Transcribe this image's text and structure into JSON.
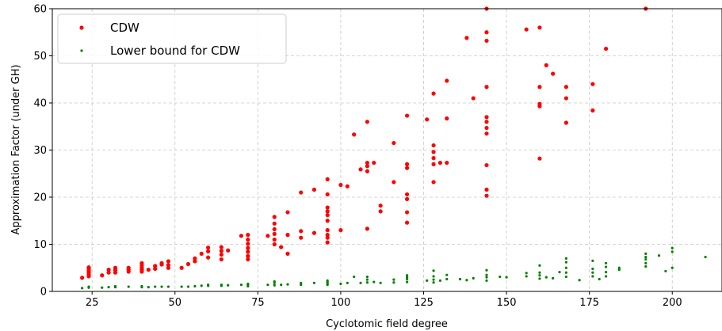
{
  "chart_data": {
    "type": "scatter",
    "xlabel": "Cyclotomic field degree",
    "ylabel": "Approximation Factor (under GH)",
    "xlim": [
      13,
      215
    ],
    "ylim": [
      0,
      60
    ],
    "xticks": [
      25,
      50,
      75,
      100,
      125,
      150,
      175,
      200
    ],
    "yticks": [
      0,
      10,
      20,
      30,
      40,
      50,
      60
    ],
    "grid": true,
    "legend_position": "top-left",
    "series": [
      {
        "name": "CDW",
        "color": "#ff0000",
        "points": [
          [
            22,
            2.9
          ],
          [
            24,
            3.2
          ],
          [
            24,
            3.6
          ],
          [
            24,
            4.0
          ],
          [
            24,
            4.4
          ],
          [
            24,
            4.8
          ],
          [
            24,
            5.1
          ],
          [
            28,
            3.4
          ],
          [
            30,
            4.0
          ],
          [
            30,
            4.6
          ],
          [
            32,
            4.0
          ],
          [
            32,
            4.5
          ],
          [
            32,
            5.0
          ],
          [
            36,
            4.2
          ],
          [
            36,
            4.6
          ],
          [
            36,
            5.0
          ],
          [
            40,
            4.2
          ],
          [
            40,
            4.6
          ],
          [
            40,
            5.0
          ],
          [
            40,
            5.5
          ],
          [
            40,
            6.0
          ],
          [
            42,
            4.6
          ],
          [
            44,
            4.8
          ],
          [
            44,
            5.4
          ],
          [
            46,
            5.7
          ],
          [
            46,
            6.0
          ],
          [
            48,
            5.0
          ],
          [
            48,
            5.6
          ],
          [
            48,
            6.4
          ],
          [
            52,
            5.0
          ],
          [
            54,
            5.8
          ],
          [
            56,
            6.4
          ],
          [
            56,
            7.0
          ],
          [
            58,
            8.0
          ],
          [
            60,
            7.2
          ],
          [
            60,
            8.5
          ],
          [
            60,
            9.3
          ],
          [
            64,
            6.8
          ],
          [
            64,
            7.8
          ],
          [
            64,
            8.6
          ],
          [
            64,
            9.4
          ],
          [
            66,
            8.7
          ],
          [
            70,
            11.8
          ],
          [
            72,
            6.8
          ],
          [
            72,
            7.5
          ],
          [
            72,
            8.4
          ],
          [
            72,
            9.2
          ],
          [
            72,
            10.1
          ],
          [
            72,
            11.0
          ],
          [
            72,
            12.0
          ],
          [
            78,
            11.8
          ],
          [
            80,
            10.0
          ],
          [
            80,
            11.0
          ],
          [
            80,
            12.2
          ],
          [
            80,
            13.2
          ],
          [
            80,
            14.4
          ],
          [
            80,
            15.8
          ],
          [
            82,
            9.4
          ],
          [
            84,
            8.0
          ],
          [
            84,
            12.0
          ],
          [
            84,
            16.8
          ],
          [
            88,
            11.4
          ],
          [
            88,
            12.8
          ],
          [
            88,
            21.0
          ],
          [
            92,
            12.4
          ],
          [
            92,
            21.6
          ],
          [
            96,
            10.4
          ],
          [
            96,
            11.4
          ],
          [
            96,
            12.0
          ],
          [
            96,
            13.0
          ],
          [
            96,
            15.0
          ],
          [
            96,
            16.2
          ],
          [
            96,
            17.0
          ],
          [
            96,
            17.8
          ],
          [
            96,
            20.6
          ],
          [
            96,
            23.8
          ],
          [
            100,
            13.0
          ],
          [
            100,
            22.6
          ],
          [
            102,
            22.3
          ],
          [
            104,
            33.3
          ],
          [
            106,
            25.9
          ],
          [
            108,
            13.3
          ],
          [
            108,
            25.5
          ],
          [
            108,
            26.6
          ],
          [
            108,
            27.3
          ],
          [
            108,
            36.0
          ],
          [
            110,
            27.3
          ],
          [
            112,
            17.0
          ],
          [
            112,
            18.2
          ],
          [
            116,
            23.2
          ],
          [
            116,
            31.5
          ],
          [
            120,
            14.6
          ],
          [
            120,
            16.8
          ],
          [
            120,
            19.6
          ],
          [
            120,
            20.6
          ],
          [
            120,
            26.2
          ],
          [
            120,
            27.0
          ],
          [
            120,
            37.3
          ],
          [
            126,
            36.5
          ],
          [
            128,
            23.2
          ],
          [
            128,
            27.0
          ],
          [
            128,
            28.3
          ],
          [
            128,
            29.6
          ],
          [
            128,
            31.0
          ],
          [
            128,
            42.0
          ],
          [
            130,
            27.3
          ],
          [
            132,
            27.3
          ],
          [
            132,
            36.7
          ],
          [
            132,
            44.7
          ],
          [
            138,
            53.8
          ],
          [
            140,
            41.0
          ],
          [
            144,
            20.3
          ],
          [
            144,
            21.6
          ],
          [
            144,
            26.8
          ],
          [
            144,
            33.5
          ],
          [
            144,
            34.7
          ],
          [
            144,
            36.0
          ],
          [
            144,
            37.0
          ],
          [
            144,
            43.4
          ],
          [
            144,
            53.2
          ],
          [
            144,
            55.0
          ],
          [
            144,
            60.0
          ],
          [
            156,
            55.6
          ],
          [
            160,
            28.2
          ],
          [
            160,
            39.3
          ],
          [
            160,
            39.8
          ],
          [
            160,
            43.4
          ],
          [
            160,
            56.0
          ],
          [
            162,
            48.0
          ],
          [
            164,
            46.2
          ],
          [
            168,
            35.8
          ],
          [
            168,
            41.0
          ],
          [
            168,
            43.4
          ],
          [
            176,
            38.4
          ],
          [
            176,
            44.0
          ],
          [
            180,
            51.5
          ],
          [
            192,
            60.0
          ]
        ]
      },
      {
        "name": "Lower bound for CDW",
        "color": "#008000",
        "points": [
          [
            22,
            0.7
          ],
          [
            24,
            0.8
          ],
          [
            24,
            1.0
          ],
          [
            28,
            0.8
          ],
          [
            30,
            0.9
          ],
          [
            32,
            0.9
          ],
          [
            32,
            1.1
          ],
          [
            36,
            1.0
          ],
          [
            40,
            0.9
          ],
          [
            40,
            1.1
          ],
          [
            42,
            0.9
          ],
          [
            44,
            1.0
          ],
          [
            46,
            1.0
          ],
          [
            48,
            1.0
          ],
          [
            52,
            1.0
          ],
          [
            54,
            1.0
          ],
          [
            56,
            1.1
          ],
          [
            58,
            1.2
          ],
          [
            60,
            1.2
          ],
          [
            60,
            1.4
          ],
          [
            64,
            1.2
          ],
          [
            64,
            1.4
          ],
          [
            66,
            1.3
          ],
          [
            70,
            1.4
          ],
          [
            72,
            1.1
          ],
          [
            72,
            1.4
          ],
          [
            72,
            1.6
          ],
          [
            78,
            1.4
          ],
          [
            80,
            1.3
          ],
          [
            80,
            1.8
          ],
          [
            80,
            2.1
          ],
          [
            82,
            1.4
          ],
          [
            84,
            1.5
          ],
          [
            88,
            1.4
          ],
          [
            88,
            1.8
          ],
          [
            92,
            1.8
          ],
          [
            96,
            1.4
          ],
          [
            96,
            1.7
          ],
          [
            96,
            2.0
          ],
          [
            96,
            2.3
          ],
          [
            100,
            1.6
          ],
          [
            102,
            1.8
          ],
          [
            104,
            3.1
          ],
          [
            106,
            1.8
          ],
          [
            108,
            1.9
          ],
          [
            108,
            2.5
          ],
          [
            108,
            3.1
          ],
          [
            110,
            2.0
          ],
          [
            112,
            1.8
          ],
          [
            116,
            1.9
          ],
          [
            116,
            2.5
          ],
          [
            120,
            2.0
          ],
          [
            120,
            2.6
          ],
          [
            120,
            3.0
          ],
          [
            120,
            3.4
          ],
          [
            126,
            2.3
          ],
          [
            128,
            1.9
          ],
          [
            128,
            2.5
          ],
          [
            128,
            3.2
          ],
          [
            128,
            4.4
          ],
          [
            130,
            2.3
          ],
          [
            132,
            2.6
          ],
          [
            132,
            3.5
          ],
          [
            136,
            2.6
          ],
          [
            138,
            2.4
          ],
          [
            140,
            2.8
          ],
          [
            144,
            2.3
          ],
          [
            144,
            3.0
          ],
          [
            144,
            3.5
          ],
          [
            144,
            4.5
          ],
          [
            148,
            3.1
          ],
          [
            150,
            3.0
          ],
          [
            156,
            3.2
          ],
          [
            156,
            3.9
          ],
          [
            160,
            2.7
          ],
          [
            160,
            3.4
          ],
          [
            160,
            4.0
          ],
          [
            160,
            5.5
          ],
          [
            162,
            3.0
          ],
          [
            164,
            2.8
          ],
          [
            166,
            4.1
          ],
          [
            168,
            3.1
          ],
          [
            168,
            4.0
          ],
          [
            168,
            5.0
          ],
          [
            168,
            6.2
          ],
          [
            168,
            7.0
          ],
          [
            172,
            2.4
          ],
          [
            176,
            3.2
          ],
          [
            176,
            4.0
          ],
          [
            176,
            4.8
          ],
          [
            176,
            6.5
          ],
          [
            178,
            2.6
          ],
          [
            180,
            3.2
          ],
          [
            180,
            4.1
          ],
          [
            180,
            5.2
          ],
          [
            180,
            6.0
          ],
          [
            184,
            4.6
          ],
          [
            184,
            5.0
          ],
          [
            192,
            5.3
          ],
          [
            192,
            6.0
          ],
          [
            192,
            6.8
          ],
          [
            192,
            7.3
          ],
          [
            192,
            8.0
          ],
          [
            196,
            7.6
          ],
          [
            198,
            4.3
          ],
          [
            200,
            5.0
          ],
          [
            200,
            8.4
          ],
          [
            200,
            9.2
          ],
          [
            210,
            7.3
          ]
        ]
      }
    ]
  }
}
